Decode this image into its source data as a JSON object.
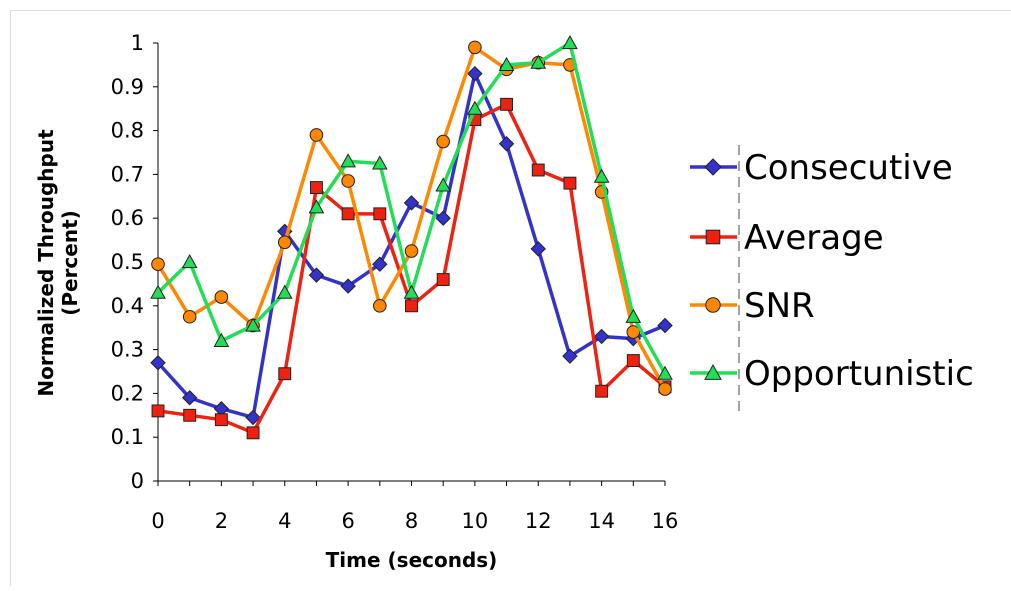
{
  "chart_data": {
    "type": "line",
    "xlabel": "Time (seconds)",
    "ylabel_lines": [
      "Normalized Throughput",
      "(Percent)"
    ],
    "x": [
      0,
      1,
      2,
      3,
      4,
      5,
      6,
      7,
      8,
      9,
      10,
      11,
      12,
      13,
      14,
      15,
      16
    ],
    "xlim": [
      0,
      16
    ],
    "ylim": [
      0,
      1
    ],
    "x_ticks": [
      0,
      2,
      4,
      6,
      8,
      10,
      12,
      14,
      16
    ],
    "y_ticks": [
      0,
      0.1,
      0.2,
      0.3,
      0.4,
      0.5,
      0.6,
      0.7,
      0.8,
      0.9,
      1
    ],
    "y_tick_labels": [
      "0",
      "0.1",
      "0.2",
      "0.3",
      "0.4",
      "0.5",
      "0.6",
      "0.7",
      "0.8",
      "0.9",
      "1"
    ],
    "x_tick_labels": [
      "0",
      "2",
      "4",
      "6",
      "8",
      "10",
      "12",
      "14",
      "16"
    ],
    "grid": false,
    "legend_position": "right",
    "series": [
      {
        "name": "Consecutive",
        "color": "#3333cc",
        "marker": "diamond",
        "values": [
          0.27,
          0.19,
          0.165,
          0.145,
          0.57,
          0.47,
          0.445,
          0.495,
          0.635,
          0.6,
          0.93,
          0.77,
          0.53,
          0.285,
          0.33,
          0.325,
          0.355
        ]
      },
      {
        "name": "Average",
        "color": "#ee2211",
        "marker": "square",
        "values": [
          0.16,
          0.15,
          0.14,
          0.11,
          0.245,
          0.67,
          0.61,
          0.61,
          0.4,
          0.46,
          0.825,
          0.86,
          0.71,
          0.68,
          0.205,
          0.275,
          0.215
        ]
      },
      {
        "name": "SNR",
        "color": "#ff8800",
        "marker": "circle",
        "values": [
          0.495,
          0.375,
          0.42,
          0.355,
          0.545,
          0.79,
          0.685,
          0.4,
          0.525,
          0.775,
          0.99,
          0.94,
          0.955,
          0.95,
          0.66,
          0.34,
          0.21
        ]
      },
      {
        "name": "Opportunistic",
        "color": "#22dd55",
        "marker": "triangle",
        "values": [
          0.43,
          0.5,
          0.32,
          0.355,
          0.43,
          0.625,
          0.73,
          0.725,
          0.43,
          0.675,
          0.85,
          0.95,
          0.955,
          1.0,
          0.695,
          0.375,
          0.245
        ]
      }
    ]
  }
}
